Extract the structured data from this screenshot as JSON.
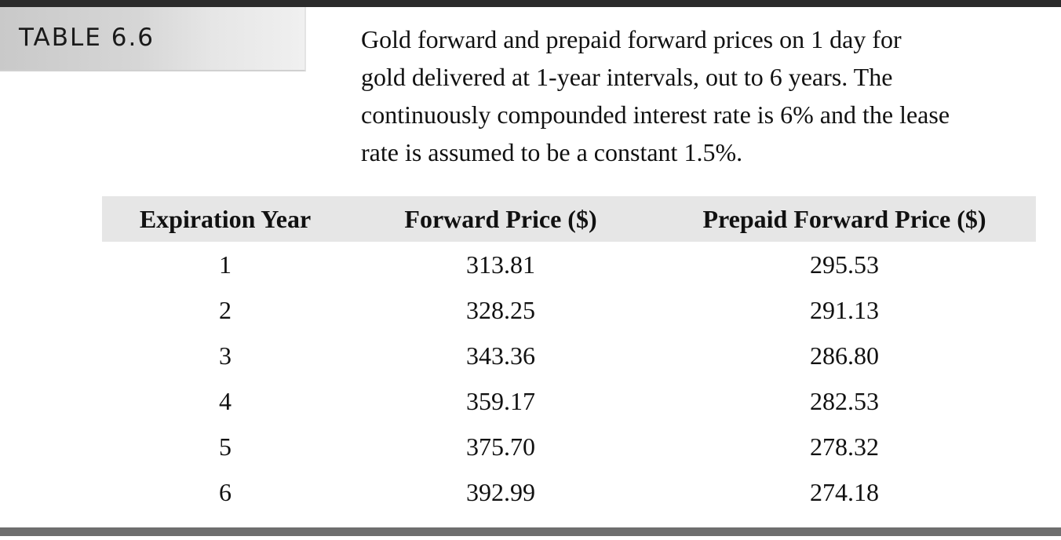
{
  "label": "TABLE 6.6",
  "caption_lines": [
    "Gold forward and prepaid forward prices on 1 day for",
    "gold delivered at 1-year intervals, out to 6 years. The",
    "continuously compounded interest rate is 6% and the lease",
    "rate is assumed to be a constant 1.5%."
  ],
  "columns": [
    "Expiration Year",
    "Forward Price ($)",
    "Prepaid Forward Price ($)"
  ],
  "rows": [
    [
      "1",
      "313.81",
      "295.53"
    ],
    [
      "2",
      "328.25",
      "291.13"
    ],
    [
      "3",
      "343.36",
      "286.80"
    ],
    [
      "4",
      "359.17",
      "282.53"
    ],
    [
      "5",
      "375.70",
      "278.32"
    ],
    [
      "6",
      "392.99",
      "274.18"
    ]
  ]
}
